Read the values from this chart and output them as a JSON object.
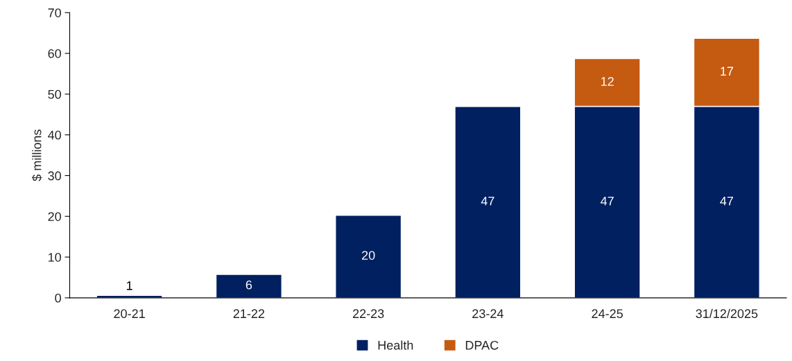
{
  "chart_data": {
    "type": "bar",
    "stacked": true,
    "ylabel": "$ millions",
    "categories": [
      "20-21",
      "21-22",
      "22-23",
      "23-24",
      "24-25",
      "31/12/2025"
    ],
    "series": [
      {
        "name": "Health",
        "color": "#002060",
        "values": [
          0.6,
          5.8,
          20.3,
          47,
          47,
          47
        ],
        "value_labels": [
          "1",
          "6",
          "20",
          "47",
          "47",
          "47"
        ]
      },
      {
        "name": "DPAC",
        "color": "#c55a11",
        "values": [
          null,
          null,
          null,
          null,
          11.7,
          16.7
        ],
        "value_labels": [
          null,
          null,
          null,
          null,
          "12",
          "17"
        ]
      }
    ],
    "ylim": [
      0,
      70
    ],
    "yticks": [
      0,
      10,
      20,
      30,
      40,
      50,
      60,
      70
    ],
    "grid": false,
    "legend": "bottom"
  }
}
